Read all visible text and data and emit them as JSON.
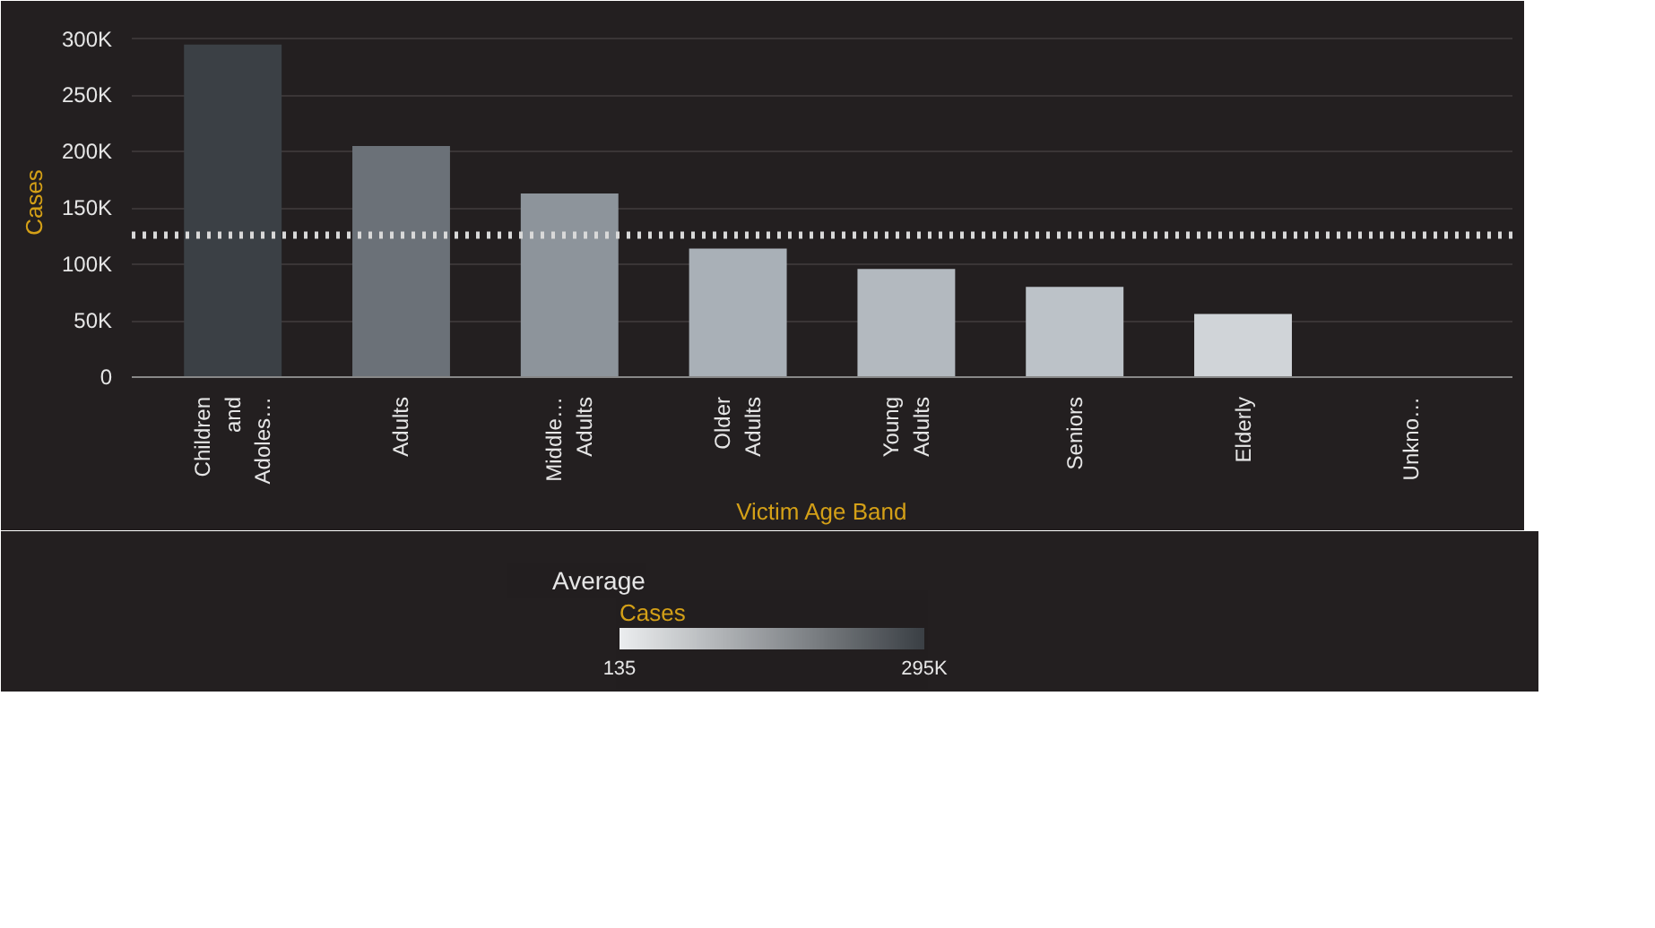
{
  "chart_data": {
    "type": "bar",
    "categories": [
      "Children and Adoles…",
      "Adults",
      "Middle… Adults",
      "Older Adults",
      "Young Adults",
      "Seniors",
      "Elderly",
      "Unkno…"
    ],
    "values": [
      295000,
      205000,
      163000,
      114000,
      96000,
      80000,
      56000,
      135
    ],
    "colors": [
      "#3b4045",
      "#6b7178",
      "#8d949b",
      "#a9b0b7",
      "#b3b9bf",
      "#bcc2c8",
      "#d0d4d8",
      "#eceef0"
    ],
    "xlabel": "Victim Age Band",
    "ylabel": "Cases",
    "clabel": "Cases",
    "ylim": [
      0,
      310000
    ],
    "yticks": [
      0,
      {
        "value": 50000,
        "label": "50K"
      },
      {
        "value": 100000,
        "label": "100K"
      },
      {
        "value": 150000,
        "label": "150K"
      },
      {
        "value": 200000,
        "label": "200K"
      },
      {
        "value": 250000,
        "label": "250K"
      },
      {
        "value": 300000,
        "label": "300K"
      }
    ],
    "clim": [
      135,
      295000
    ],
    "cticks": [
      135,
      {
        "value": 295000,
        "label": "295K"
      }
    ],
    "ref_lines": [
      {
        "axis": "y",
        "value": 126000,
        "label": "Average",
        "color": "#d9d9d9",
        "line_style": "dotted"
      }
    ],
    "grid": "y",
    "legend": "bottom"
  }
}
